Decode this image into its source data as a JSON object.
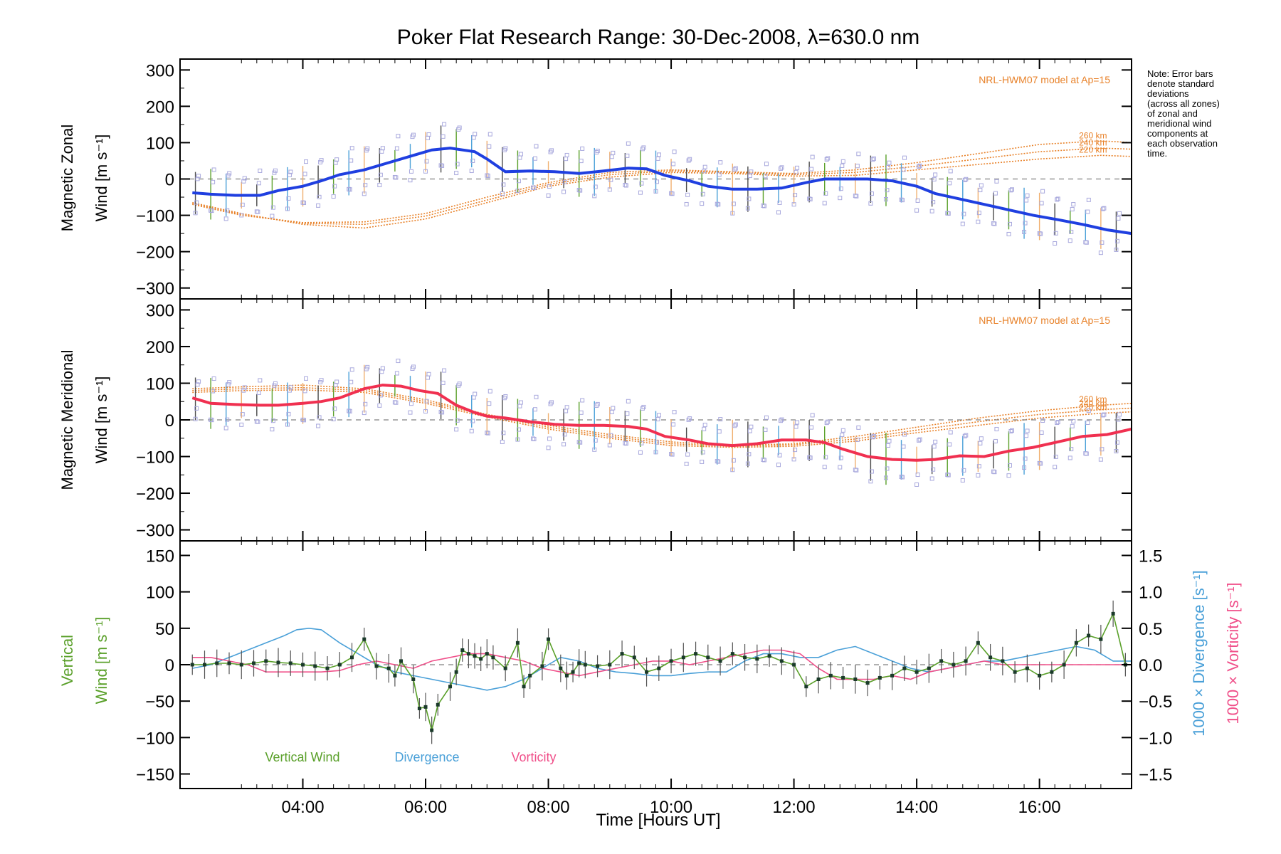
{
  "chart_data": [
    {
      "panel": "zonal",
      "type": "line",
      "title": "Poker Flat Research Range: 30-Dec-2008, λ=630.0 nm",
      "ylabel_lines": [
        "Magnetic Zonal",
        "Wind [m s⁻¹]"
      ],
      "ylim": [
        -330,
        330
      ],
      "yticks": [
        300,
        200,
        100,
        0,
        -100,
        -200,
        -300
      ],
      "model_label": "NRL-HWM07 model at Ap=15",
      "note": [
        "Note: Error bars",
        "denote standard",
        "deviations",
        "(across all zones)",
        "of zonal and",
        "meridional wind",
        "components at",
        "each observation",
        "time."
      ],
      "colors": {
        "mean": "#1f3fe0",
        "model": "#e8822a",
        "scatter": "#a9a9dd",
        "zero": "#808080"
      },
      "series": [
        {
          "name": "mean",
          "x": [
            2.2,
            2.5,
            2.9,
            3.3,
            3.6,
            4.0,
            4.3,
            4.6,
            5.0,
            5.4,
            5.8,
            6.1,
            6.4,
            6.8,
            7.0,
            7.3,
            7.7,
            8.1,
            8.5,
            8.9,
            9.3,
            9.6,
            9.9,
            10.3,
            10.6,
            11.0,
            11.4,
            11.8,
            12.2,
            12.5,
            12.8,
            13.2,
            13.6,
            14.0,
            14.3,
            14.7,
            15.1,
            15.5,
            15.9,
            16.3,
            16.7,
            17.1,
            17.5
          ],
          "values": [
            -38,
            -42,
            -45,
            -45,
            -32,
            -20,
            -5,
            12,
            25,
            45,
            65,
            80,
            85,
            75,
            55,
            20,
            22,
            20,
            15,
            22,
            30,
            28,
            10,
            -5,
            -20,
            -28,
            -28,
            -25,
            -10,
            0,
            0,
            0,
            -5,
            -20,
            -40,
            -55,
            -70,
            -85,
            -100,
            -112,
            -125,
            -140,
            -150
          ]
        },
        {
          "name": "model",
          "label": "260 km",
          "x": [
            2.2,
            3.0,
            4.0,
            5.0,
            6.0,
            7.0,
            8.0,
            9.0,
            10.0,
            11.0,
            12.0,
            13.0,
            14.0,
            15.0,
            16.0,
            17.0,
            17.5
          ],
          "values": [
            -70,
            -100,
            -120,
            -118,
            -95,
            -50,
            -10,
            18,
            25,
            20,
            15,
            25,
            45,
            70,
            95,
            105,
            100
          ]
        },
        {
          "name": "model",
          "label": "240 km",
          "x": [
            2.2,
            3.0,
            4.0,
            5.0,
            6.0,
            7.0,
            8.0,
            9.0,
            10.0,
            11.0,
            12.0,
            13.0,
            14.0,
            15.0,
            16.0,
            17.0,
            17.5
          ],
          "values": [
            -68,
            -98,
            -122,
            -125,
            -102,
            -58,
            -15,
            12,
            22,
            18,
            12,
            18,
            35,
            55,
            75,
            85,
            82
          ]
        },
        {
          "name": "model",
          "label": "220 km",
          "x": [
            2.2,
            3.0,
            4.0,
            5.0,
            6.0,
            7.0,
            8.0,
            9.0,
            10.0,
            11.0,
            12.0,
            13.0,
            14.0,
            15.0,
            16.0,
            17.0,
            17.5
          ],
          "values": [
            -65,
            -95,
            -125,
            -135,
            -110,
            -65,
            -20,
            5,
            18,
            15,
            8,
            10,
            25,
            40,
            55,
            65,
            62
          ]
        }
      ]
    },
    {
      "panel": "meridional",
      "type": "line",
      "ylabel_lines": [
        "Magnetic Meridional",
        "Wind [m s⁻¹]"
      ],
      "ylim": [
        -330,
        330
      ],
      "yticks": [
        300,
        200,
        100,
        0,
        -100,
        -200,
        -300
      ],
      "model_label": "NRL-HWM07 model at Ap=15",
      "colors": {
        "mean": "#f03050",
        "model": "#e8822a",
        "scatter": "#a9a9dd",
        "zero": "#808080"
      },
      "series": [
        {
          "name": "mean",
          "x": [
            2.2,
            2.5,
            2.9,
            3.3,
            3.6,
            4.0,
            4.3,
            4.6,
            5.0,
            5.3,
            5.6,
            5.9,
            6.2,
            6.5,
            6.8,
            7.0,
            7.3,
            7.7,
            8.1,
            8.5,
            8.9,
            9.3,
            9.6,
            9.9,
            10.3,
            10.6,
            11.0,
            11.4,
            11.8,
            12.2,
            12.5,
            12.8,
            13.2,
            13.6,
            14.0,
            14.3,
            14.7,
            15.1,
            15.5,
            15.9,
            16.3,
            16.7,
            17.1,
            17.5
          ],
          "values": [
            60,
            45,
            42,
            40,
            40,
            45,
            50,
            60,
            85,
            95,
            92,
            80,
            72,
            40,
            20,
            10,
            5,
            -5,
            -12,
            -15,
            -15,
            -18,
            -25,
            -45,
            -55,
            -65,
            -70,
            -65,
            -55,
            -55,
            -62,
            -80,
            -100,
            -108,
            -110,
            -108,
            -98,
            -100,
            -85,
            -75,
            -60,
            -45,
            -40,
            -25
          ]
        },
        {
          "name": "model",
          "label": "260 km",
          "x": [
            2.2,
            3.0,
            4.0,
            5.0,
            6.0,
            7.0,
            8.0,
            9.0,
            10.0,
            11.0,
            12.0,
            13.0,
            14.0,
            15.0,
            16.0,
            17.0,
            17.5
          ],
          "values": [
            85,
            90,
            95,
            85,
            55,
            15,
            -15,
            -40,
            -60,
            -70,
            -65,
            -45,
            -20,
            5,
            25,
            40,
            45
          ]
        },
        {
          "name": "model",
          "label": "240 km",
          "x": [
            2.2,
            3.0,
            4.0,
            5.0,
            6.0,
            7.0,
            8.0,
            9.0,
            10.0,
            11.0,
            12.0,
            13.0,
            14.0,
            15.0,
            16.0,
            17.0,
            17.5
          ],
          "values": [
            80,
            85,
            88,
            80,
            50,
            12,
            -20,
            -45,
            -65,
            -72,
            -68,
            -52,
            -28,
            -5,
            15,
            28,
            32
          ]
        },
        {
          "name": "model",
          "label": "220 km",
          "x": [
            2.2,
            3.0,
            4.0,
            5.0,
            6.0,
            7.0,
            8.0,
            9.0,
            10.0,
            11.0,
            12.0,
            13.0,
            14.0,
            15.0,
            16.0,
            17.0,
            17.5
          ],
          "values": [
            75,
            80,
            82,
            75,
            45,
            8,
            -25,
            -50,
            -70,
            -75,
            -72,
            -58,
            -35,
            -15,
            5,
            18,
            22
          ]
        }
      ]
    },
    {
      "panel": "vertical",
      "type": "line",
      "xlabel": "Time [Hours UT]",
      "xticks": [
        "04:00",
        "06:00",
        "08:00",
        "10:00",
        "12:00",
        "14:00",
        "16:00"
      ],
      "xlim": [
        2.0,
        17.5
      ],
      "ylabel_lines": [
        "Vertical",
        "Wind [m s⁻¹]"
      ],
      "ylim": [
        -170,
        170
      ],
      "yticks": [
        150,
        100,
        50,
        0,
        -50,
        -100,
        -150
      ],
      "right_axis_label1": "1000 × Divergence [s⁻¹]",
      "right_axis_label2": "1000 × Vorticity [s⁻¹]",
      "right_ylim": [
        -1.7,
        1.7
      ],
      "right_yticks": [
        "1.5",
        "1.0",
        "0.5",
        "0.0",
        "−0.5",
        "−1.0",
        "−1.5"
      ],
      "colors": {
        "vertical": "#5aa02a",
        "divergence": "#4aa0d8",
        "vorticity": "#f0508a",
        "zero": "#808080"
      },
      "series": [
        {
          "name": "Vertical Wind",
          "x": [
            2.2,
            2.4,
            2.6,
            2.8,
            3.0,
            3.2,
            3.4,
            3.6,
            3.8,
            4.0,
            4.2,
            4.4,
            4.6,
            4.8,
            5.0,
            5.2,
            5.4,
            5.5,
            5.6,
            5.8,
            5.9,
            6.0,
            6.1,
            6.2,
            6.4,
            6.5,
            6.6,
            6.7,
            6.8,
            6.9,
            7.0,
            7.1,
            7.3,
            7.5,
            7.6,
            7.7,
            7.9,
            8.0,
            8.2,
            8.3,
            8.4,
            8.5,
            8.6,
            8.8,
            9.0,
            9.2,
            9.4,
            9.6,
            9.8,
            10.0,
            10.2,
            10.4,
            10.6,
            10.8,
            11.0,
            11.2,
            11.4,
            11.6,
            11.8,
            12.0,
            12.2,
            12.4,
            12.6,
            12.8,
            13.0,
            13.2,
            13.4,
            13.6,
            13.8,
            14.0,
            14.2,
            14.4,
            14.6,
            14.8,
            15.0,
            15.2,
            15.4,
            15.6,
            15.8,
            16.0,
            16.2,
            16.4,
            16.6,
            16.8,
            17.0,
            17.2,
            17.4
          ],
          "values": [
            0,
            0,
            2,
            2,
            0,
            2,
            5,
            3,
            2,
            0,
            -2,
            -5,
            0,
            10,
            35,
            -2,
            -5,
            -15,
            5,
            -20,
            -60,
            -58,
            -90,
            -55,
            -30,
            -10,
            20,
            15,
            12,
            8,
            15,
            10,
            -5,
            30,
            -30,
            -15,
            -2,
            35,
            -5,
            -15,
            -10,
            2,
            0,
            -2,
            0,
            15,
            10,
            -10,
            -5,
            5,
            10,
            15,
            10,
            5,
            15,
            10,
            8,
            12,
            5,
            0,
            -30,
            -20,
            -15,
            -18,
            -20,
            -25,
            -18,
            -15,
            -5,
            -10,
            -5,
            5,
            0,
            5,
            30,
            10,
            5,
            -10,
            -5,
            -15,
            -10,
            0,
            30,
            40,
            35,
            70,
            0
          ]
        },
        {
          "name": "Divergence",
          "x": [
            2.2,
            2.5,
            2.8,
            3.1,
            3.4,
            3.7,
            3.9,
            4.1,
            4.3,
            4.6,
            4.9,
            5.2,
            5.5,
            5.8,
            6.1,
            6.4,
            6.7,
            7.0,
            7.3,
            7.6,
            7.9,
            8.2,
            8.5,
            8.8,
            9.1,
            9.4,
            9.7,
            10.0,
            10.3,
            10.6,
            10.9,
            11.2,
            11.5,
            11.8,
            12.1,
            12.4,
            12.7,
            13.0,
            13.3,
            13.6,
            13.9,
            14.2,
            14.5,
            14.8,
            15.1,
            15.4,
            15.7,
            16.0,
            16.3,
            16.6,
            16.9,
            17.2,
            17.5
          ],
          "values": [
            -0.05,
            0.0,
            0.1,
            0.2,
            0.3,
            0.4,
            0.48,
            0.5,
            0.48,
            0.3,
            0.15,
            0.0,
            -0.1,
            -0.15,
            -0.2,
            -0.25,
            -0.3,
            -0.35,
            -0.3,
            -0.2,
            -0.05,
            0.1,
            0.05,
            -0.05,
            -0.1,
            -0.12,
            -0.15,
            -0.15,
            -0.12,
            -0.1,
            -0.1,
            0.05,
            0.15,
            0.15,
            0.1,
            0.1,
            0.2,
            0.25,
            0.15,
            0.05,
            -0.05,
            -0.1,
            -0.05,
            0.0,
            0.05,
            0.05,
            0.1,
            0.15,
            0.2,
            0.25,
            0.2,
            0.05,
            0.05
          ]
        },
        {
          "name": "Vorticity",
          "x": [
            2.2,
            2.5,
            2.8,
            3.1,
            3.4,
            3.7,
            4.0,
            4.3,
            4.6,
            4.9,
            5.2,
            5.5,
            5.8,
            6.1,
            6.4,
            6.7,
            7.0,
            7.3,
            7.6,
            7.9,
            8.2,
            8.5,
            8.8,
            9.1,
            9.4,
            9.7,
            10.0,
            10.3,
            10.6,
            10.9,
            11.2,
            11.5,
            11.8,
            12.1,
            12.4,
            12.7,
            13.0,
            13.3,
            13.6,
            13.9,
            14.2,
            14.5,
            14.8,
            15.1,
            15.4,
            15.7,
            16.0,
            16.3,
            16.6,
            16.9,
            17.2,
            17.5
          ],
          "values": [
            0.1,
            0.1,
            0.05,
            0.0,
            -0.1,
            -0.1,
            -0.1,
            -0.1,
            -0.08,
            0.0,
            0.05,
            0.0,
            -0.05,
            0.05,
            0.1,
            0.15,
            0.15,
            0.1,
            0.05,
            -0.05,
            -0.1,
            -0.15,
            -0.1,
            -0.05,
            0.0,
            0.05,
            0.05,
            0.0,
            0.05,
            0.1,
            0.15,
            0.2,
            0.2,
            0.15,
            -0.05,
            -0.2,
            -0.2,
            -0.2,
            -0.15,
            -0.2,
            -0.1,
            -0.05,
            0.0,
            0.05,
            0.0,
            0.0,
            0.0,
            0.0,
            0.0,
            0.0,
            0.0,
            0.0
          ]
        }
      ]
    }
  ]
}
